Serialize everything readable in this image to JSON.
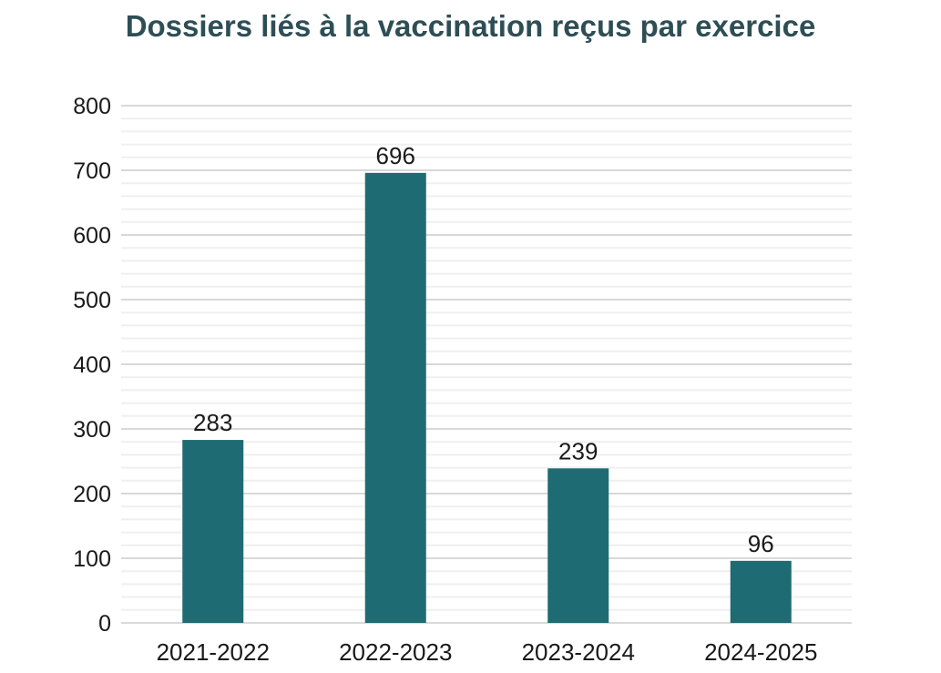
{
  "chart_data": {
    "type": "bar",
    "title": "Dossiers liés à la vaccination reçus par exercice",
    "categories": [
      "2021-2022",
      "2022-2023",
      "2023-2024",
      "2024-2025"
    ],
    "values": [
      283,
      696,
      239,
      96
    ],
    "data_labels": [
      "283",
      "696",
      "239",
      "96"
    ],
    "xlabel": "",
    "ylabel": "",
    "ylim": [
      0,
      800
    ],
    "yticks": [
      0,
      100,
      200,
      300,
      400,
      500,
      600,
      700,
      800
    ],
    "minor_grid_step": 20,
    "grid": true,
    "legend": "none",
    "colors": {
      "bar": "#1f6b73",
      "title": "#2e4e56",
      "grid_major": "#d9d9d9",
      "grid_minor": "#efefef"
    }
  }
}
